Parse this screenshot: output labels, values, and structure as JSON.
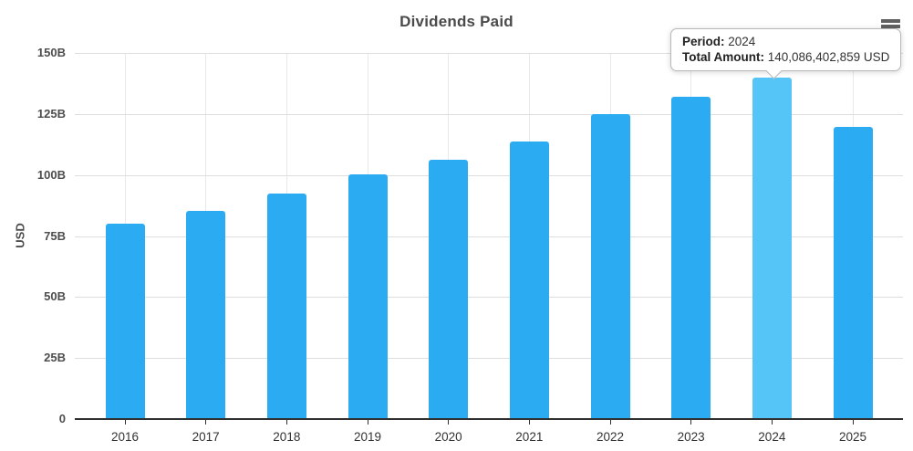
{
  "chart_data": {
    "type": "bar",
    "title": "Dividends Paid",
    "ylabel": "USD",
    "categories": [
      "2016",
      "2017",
      "2018",
      "2019",
      "2020",
      "2021",
      "2022",
      "2023",
      "2024",
      "2025"
    ],
    "values_billion_usd": [
      80.0,
      85.4,
      92.4,
      100.2,
      106.2,
      113.8,
      125.0,
      132.0,
      140.086,
      119.7
    ],
    "ylim": [
      0,
      150
    ],
    "ytick_labels": [
      "150B",
      "125B",
      "100B",
      "75B",
      "50B",
      "25B",
      "0"
    ],
    "grid": true,
    "legend": "none",
    "highlighted_category": "2024",
    "highlighted_index": 8
  },
  "tooltip": {
    "period_label": "Period:",
    "period_value": "2024",
    "amount_label": "Total Amount:",
    "amount_value": "140,086,402,859 USD"
  },
  "icons": {
    "context_menu": "hamburger-menu-icon"
  },
  "colors": {
    "bar": "#2babf2",
    "bar_highlight": "#55c5f7",
    "grid_horizontal": "#dedede",
    "grid_vertical": "#e9e9e9",
    "axis_line": "#303030",
    "title_text": "#4a4a4a"
  }
}
